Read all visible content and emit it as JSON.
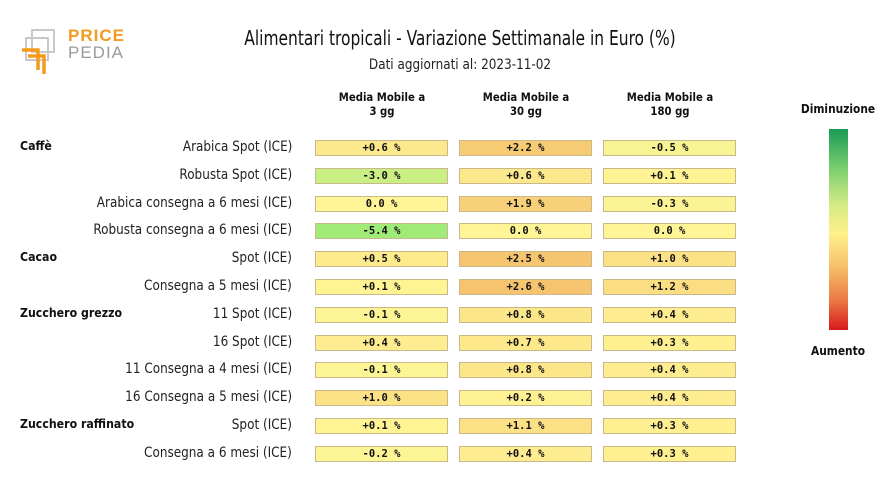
{
  "logo": {
    "word1": "PRICE",
    "word2": "PEDIA",
    "colors": {
      "orange": "#f59a1c",
      "grey": "#9a9a9a"
    }
  },
  "title": "Alimentari tropicali - Variazione Settimanale in Euro (%)",
  "subtitle": "Dati aggiornati al: 2023-11-02",
  "columns": [
    {
      "line1": "Media Mobile a",
      "line2": "3 gg"
    },
    {
      "line1": "Media Mobile a",
      "line2": "30 gg"
    },
    {
      "line1": "Media Mobile a",
      "line2": "180 gg"
    }
  ],
  "legend": {
    "top": "Diminuzione",
    "bottom": "Aumento",
    "colors": [
      "#1a9a55",
      "#fff08a",
      "#d7191c"
    ]
  },
  "chart_data": {
    "type": "table",
    "title": "Alimentari tropicali - Variazione Settimanale in Euro (%)",
    "columns": [
      "Media Mobile a 3 gg",
      "Media Mobile a 30 gg",
      "Media Mobile a 180 gg"
    ],
    "groups": [
      {
        "name": "Caffè",
        "rows": [
          {
            "label": "Arabica Spot (ICE)",
            "values": [
              0.6,
              2.2,
              -0.5
            ],
            "text": [
              "+0.6 %",
              "+2.2 %",
              "-0.5 %"
            ]
          },
          {
            "label": "Robusta Spot (ICE)",
            "values": [
              -3.0,
              0.6,
              0.1
            ],
            "text": [
              "-3.0 %",
              "+0.6 %",
              "+0.1 %"
            ]
          },
          {
            "label": "Arabica consegna a 6 mesi (ICE)",
            "values": [
              0.0,
              1.9,
              -0.3
            ],
            "text": [
              "0.0 %",
              "+1.9 %",
              "-0.3 %"
            ]
          },
          {
            "label": "Robusta consegna a 6 mesi (ICE)",
            "values": [
              -5.4,
              0.0,
              0.0
            ],
            "text": [
              "-5.4 %",
              "0.0 %",
              "0.0 %"
            ]
          }
        ]
      },
      {
        "name": "Cacao",
        "rows": [
          {
            "label": "Spot (ICE)",
            "values": [
              0.5,
              2.5,
              1.0
            ],
            "text": [
              "+0.5 %",
              "+2.5 %",
              "+1.0 %"
            ]
          },
          {
            "label": "Consegna a 5 mesi (ICE)",
            "values": [
              0.1,
              2.6,
              1.2
            ],
            "text": [
              "+0.1 %",
              "+2.6 %",
              "+1.2 %"
            ]
          }
        ]
      },
      {
        "name": "Zucchero grezzo",
        "rows": [
          {
            "label": "11 Spot (ICE)",
            "values": [
              -0.1,
              0.8,
              0.4
            ],
            "text": [
              "-0.1 %",
              "+0.8 %",
              "+0.4 %"
            ]
          },
          {
            "label": "16 Spot (ICE)",
            "values": [
              0.4,
              0.7,
              0.3
            ],
            "text": [
              "+0.4 %",
              "+0.7 %",
              "+0.3 %"
            ]
          },
          {
            "label": "11 Consegna a 4 mesi (ICE)",
            "values": [
              -0.1,
              0.8,
              0.4
            ],
            "text": [
              "-0.1 %",
              "+0.8 %",
              "+0.4 %"
            ]
          },
          {
            "label": "16 Consegna a 5 mesi (ICE)",
            "values": [
              1.0,
              0.2,
              0.4
            ],
            "text": [
              "+1.0 %",
              "+0.2 %",
              "+0.4 %"
            ]
          }
        ]
      },
      {
        "name": "Zucchero raffinato",
        "rows": [
          {
            "label": "Spot (ICE)",
            "values": [
              0.1,
              1.1,
              0.3
            ],
            "text": [
              "+0.1 %",
              "+1.1 %",
              "+0.3 %"
            ]
          },
          {
            "label": "Consegna a 6 mesi (ICE)",
            "values": [
              -0.2,
              0.4,
              0.3
            ],
            "text": [
              "-0.2 %",
              "+0.4 %",
              "+0.3 %"
            ]
          }
        ]
      }
    ]
  }
}
